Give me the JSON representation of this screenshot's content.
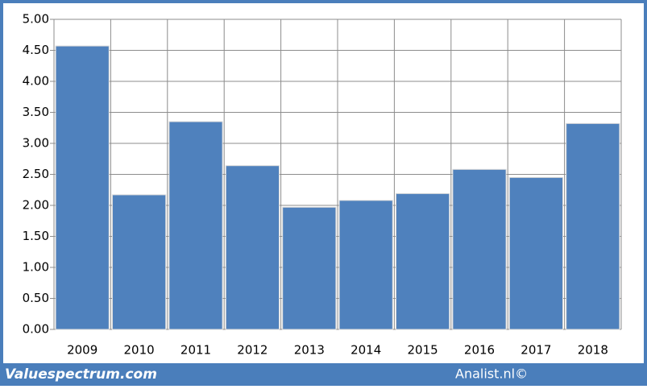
{
  "chart_data": {
    "type": "bar",
    "categories": [
      "2009",
      "2010",
      "2011",
      "2012",
      "2013",
      "2014",
      "2015",
      "2016",
      "2017",
      "2018"
    ],
    "values": [
      4.57,
      2.17,
      3.35,
      2.64,
      1.97,
      2.08,
      2.19,
      2.58,
      2.45,
      3.32
    ],
    "color": "#4f81bd",
    "ylim": [
      0,
      5
    ],
    "yticks": [
      {
        "value": 0,
        "label": "0.00"
      },
      {
        "value": 0.5,
        "label": "0.50"
      },
      {
        "value": 1,
        "label": "1.00"
      },
      {
        "value": 1.5,
        "label": "1.50"
      },
      {
        "value": 2,
        "label": "2.00"
      },
      {
        "value": 2.5,
        "label": "2.50"
      },
      {
        "value": 3,
        "label": "3.00"
      },
      {
        "value": 3.5,
        "label": "3.50"
      },
      {
        "value": 4,
        "label": "4.00"
      },
      {
        "value": 4.5,
        "label": "4.50"
      },
      {
        "value": 5,
        "label": "5.00"
      }
    ],
    "grid": true
  },
  "footer": {
    "left": "Valuespectrum.com",
    "right": "Analist.nl©"
  }
}
